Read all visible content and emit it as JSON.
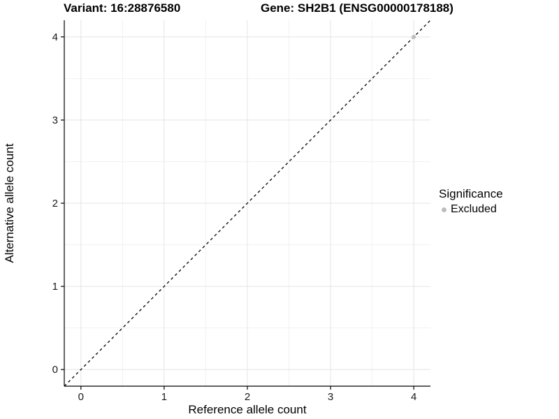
{
  "chart_data": {
    "type": "scatter",
    "title_left": "Variant: 16:28876580",
    "title_right": "Gene: SH2B1 (ENSG00000178188)",
    "xlabel": "Reference allele count",
    "ylabel": "Alternative allele count",
    "xlim": [
      -0.2,
      4.2
    ],
    "ylim": [
      -0.2,
      4.2
    ],
    "xticks": [
      0,
      1,
      2,
      3,
      4
    ],
    "yticks": [
      0,
      1,
      2,
      3,
      4
    ],
    "grid": "major+minor",
    "reference_line": {
      "type": "identity",
      "slope": 1,
      "intercept": 0,
      "style": "dashed",
      "color": "#000000"
    },
    "series": [
      {
        "name": "Excluded",
        "color": "#bdbdbd",
        "points": [
          [
            4,
            4
          ]
        ]
      }
    ],
    "legend": {
      "title": "Significance",
      "position": "right",
      "items": [
        {
          "label": "Excluded",
          "color": "#bdbdbd",
          "marker": "circle"
        }
      ]
    }
  },
  "colors": {
    "background": "#ffffff",
    "grid_major": "#e4e4e4",
    "grid_minor": "#f1f1f1",
    "axis_line": "#000000",
    "tick_label": "#1a1a1a",
    "excluded_point": "#bdbdbd"
  }
}
